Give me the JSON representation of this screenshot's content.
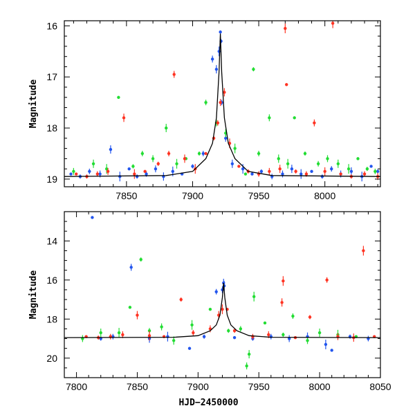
{
  "chart_data": [
    {
      "type": "scatter",
      "panel": "top",
      "title": "",
      "xlabel": "",
      "ylabel": "Magnitude",
      "xlim": [
        7803,
        8042
      ],
      "ylim": [
        19.15,
        15.9
      ],
      "y_inverted": true,
      "xticks": [
        7850,
        7900,
        7950,
        8000
      ],
      "yticks": [
        16,
        17,
        18,
        19
      ],
      "series": [
        {
          "color": "#2255ee",
          "points": [
            [
              7808,
              18.9
            ],
            [
              7815,
              18.95
            ],
            [
              7822,
              18.85
            ],
            [
              7830,
              18.9
            ],
            [
              7838,
              18.42
            ],
            [
              7845,
              18.95
            ],
            [
              7852,
              18.8
            ],
            [
              7858,
              18.95
            ],
            [
              7865,
              18.9
            ],
            [
              7872,
              18.8
            ],
            [
              7878,
              18.95
            ],
            [
              7885,
              18.85
            ],
            [
              7892,
              18.9
            ],
            [
              7900,
              18.75
            ],
            [
              7908,
              18.5
            ],
            [
              7915,
              16.65
            ],
            [
              7918,
              16.85
            ],
            [
              7920,
              16.5
            ],
            [
              7921,
              16.12
            ],
            [
              7921.5,
              16.3
            ],
            [
              7922,
              17.5
            ],
            [
              7925,
              18.2
            ],
            [
              7930,
              18.7
            ],
            [
              7938,
              18.8
            ],
            [
              7945,
              18.9
            ],
            [
              7952,
              18.85
            ],
            [
              7960,
              18.95
            ],
            [
              7968,
              18.9
            ],
            [
              7975,
              18.8
            ],
            [
              7982,
              18.9
            ],
            [
              7990,
              18.85
            ],
            [
              7998,
              18.95
            ],
            [
              8005,
              18.8
            ],
            [
              8012,
              18.9
            ],
            [
              8020,
              18.85
            ],
            [
              8028,
              18.95
            ],
            [
              8035,
              18.75
            ],
            [
              8040,
              18.85
            ]
          ]
        },
        {
          "color": "#22dd33",
          "points": [
            [
              7810,
              18.85
            ],
            [
              7825,
              18.7
            ],
            [
              7835,
              18.8
            ],
            [
              7844,
              17.4
            ],
            [
              7855,
              18.75
            ],
            [
              7862,
              18.5
            ],
            [
              7870,
              18.6
            ],
            [
              7880,
              18.0
            ],
            [
              7888,
              18.7
            ],
            [
              7895,
              18.6
            ],
            [
              7905,
              18.5
            ],
            [
              7910,
              17.5
            ],
            [
              7918,
              17.9
            ],
            [
              7925,
              18.1
            ],
            [
              7932,
              18.4
            ],
            [
              7940,
              18.9
            ],
            [
              7946,
              16.85
            ],
            [
              7950,
              18.5
            ],
            [
              7958,
              17.8
            ],
            [
              7965,
              18.6
            ],
            [
              7972,
              18.7
            ],
            [
              7977,
              17.8
            ],
            [
              7985,
              18.5
            ],
            [
              7995,
              18.7
            ],
            [
              8002,
              18.6
            ],
            [
              8010,
              18.7
            ],
            [
              8018,
              18.8
            ],
            [
              8025,
              18.6
            ],
            [
              8032,
              18.8
            ],
            [
              8038,
              18.85
            ]
          ]
        },
        {
          "color": "#ff3322",
          "points": [
            [
              7812,
              18.9
            ],
            [
              7820,
              18.95
            ],
            [
              7828,
              18.9
            ],
            [
              7836,
              18.85
            ],
            [
              7848,
              17.8
            ],
            [
              7856,
              18.9
            ],
            [
              7864,
              18.85
            ],
            [
              7874,
              18.7
            ],
            [
              7882,
              18.5
            ],
            [
              7886,
              16.95
            ],
            [
              7894,
              18.6
            ],
            [
              7902,
              18.8
            ],
            [
              7910,
              18.5
            ],
            [
              7916,
              18.2
            ],
            [
              7919,
              17.9
            ],
            [
              7921,
              17.5
            ],
            [
              7924,
              17.3
            ],
            [
              7928,
              18.3
            ],
            [
              7935,
              18.75
            ],
            [
              7942,
              18.85
            ],
            [
              7950,
              18.9
            ],
            [
              7958,
              18.85
            ],
            [
              7966,
              18.8
            ],
            [
              7970,
              16.05
            ],
            [
              7971,
              17.15
            ],
            [
              7978,
              18.85
            ],
            [
              7986,
              18.9
            ],
            [
              7992,
              17.9
            ],
            [
              8000,
              18.85
            ],
            [
              8006,
              15.95
            ],
            [
              8012,
              18.9
            ],
            [
              8020,
              18.95
            ],
            [
              8030,
              18.9
            ],
            [
              8040,
              18.95
            ]
          ]
        }
      ],
      "model_curve": [
        [
          7803,
          18.95
        ],
        [
          7880,
          18.93
        ],
        [
          7900,
          18.85
        ],
        [
          7910,
          18.6
        ],
        [
          7915,
          18.3
        ],
        [
          7918,
          17.8
        ],
        [
          7920,
          16.9
        ],
        [
          7921,
          16.15
        ],
        [
          7922,
          16.9
        ],
        [
          7924,
          17.8
        ],
        [
          7927,
          18.3
        ],
        [
          7932,
          18.6
        ],
        [
          7942,
          18.85
        ],
        [
          7960,
          18.93
        ],
        [
          8042,
          18.95
        ]
      ]
    },
    {
      "type": "scatter",
      "panel": "bottom",
      "title": "",
      "xlabel": "HJD−2450000",
      "ylabel": "Magnitude",
      "xlim": [
        7790,
        8050
      ],
      "ylim": [
        21,
        12.5
      ],
      "y_inverted": true,
      "xticks": [
        7800,
        7850,
        7900,
        7950,
        8000,
        8050
      ],
      "yticks": [
        14,
        16,
        18,
        20
      ],
      "series": [
        {
          "color": "#2255ee",
          "points": [
            [
              7813,
              12.8
            ],
            [
              7820,
              19.0
            ],
            [
              7830,
              18.9
            ],
            [
              7845,
              15.35
            ],
            [
              7860,
              19.0
            ],
            [
              7875,
              18.9
            ],
            [
              7893,
              19.5
            ],
            [
              7905,
              18.9
            ],
            [
              7915,
              16.6
            ],
            [
              7920,
              16.5
            ],
            [
              7921,
              16.15
            ],
            [
              7921.5,
              16.3
            ],
            [
              7930,
              18.95
            ],
            [
              7945,
              19.0
            ],
            [
              7960,
              18.9
            ],
            [
              7975,
              19.0
            ],
            [
              7990,
              18.9
            ],
            [
              8005,
              19.3
            ],
            [
              8010,
              19.6
            ],
            [
              8025,
              18.9
            ],
            [
              8040,
              19.0
            ]
          ]
        },
        {
          "color": "#22dd33",
          "points": [
            [
              7805,
              19.0
            ],
            [
              7820,
              18.7
            ],
            [
              7835,
              18.7
            ],
            [
              7844,
              17.4
            ],
            [
              7853,
              14.95
            ],
            [
              7860,
              18.6
            ],
            [
              7870,
              18.4
            ],
            [
              7880,
              19.1
            ],
            [
              7895,
              18.3
            ],
            [
              7910,
              17.5
            ],
            [
              7925,
              18.6
            ],
            [
              7935,
              18.5
            ],
            [
              7940,
              20.4
            ],
            [
              7942,
              19.8
            ],
            [
              7946,
              16.85
            ],
            [
              7955,
              18.2
            ],
            [
              7970,
              18.8
            ],
            [
              7978,
              17.85
            ],
            [
              7990,
              19.1
            ],
            [
              8000,
              18.7
            ],
            [
              8015,
              18.8
            ],
            [
              8030,
              18.9
            ]
          ]
        },
        {
          "color": "#ff3322",
          "points": [
            [
              7808,
              18.9
            ],
            [
              7818,
              18.95
            ],
            [
              7828,
              18.9
            ],
            [
              7838,
              18.8
            ],
            [
              7850,
              17.8
            ],
            [
              7860,
              18.85
            ],
            [
              7872,
              18.9
            ],
            [
              7886,
              17.0
            ],
            [
              7896,
              18.7
            ],
            [
              7910,
              18.5
            ],
            [
              7917,
              17.8
            ],
            [
              7920,
              17.5
            ],
            [
              7924,
              17.5
            ],
            [
              7930,
              18.6
            ],
            [
              7945,
              18.9
            ],
            [
              7958,
              18.8
            ],
            [
              7969,
              17.15
            ],
            [
              7970,
              16.05
            ],
            [
              7980,
              18.95
            ],
            [
              7992,
              17.9
            ],
            [
              8006,
              16.0
            ],
            [
              8015,
              18.9
            ],
            [
              8028,
              18.95
            ],
            [
              8036,
              14.5
            ],
            [
              8045,
              18.9
            ]
          ]
        }
      ],
      "model_curve": [
        [
          7790,
          18.95
        ],
        [
          7880,
          18.93
        ],
        [
          7900,
          18.85
        ],
        [
          7910,
          18.6
        ],
        [
          7915,
          18.3
        ],
        [
          7918,
          17.8
        ],
        [
          7920,
          16.9
        ],
        [
          7921,
          16.15
        ],
        [
          7922,
          16.9
        ],
        [
          7924,
          17.8
        ],
        [
          7927,
          18.3
        ],
        [
          7932,
          18.6
        ],
        [
          7942,
          18.85
        ],
        [
          7960,
          18.93
        ],
        [
          8050,
          18.95
        ]
      ]
    }
  ]
}
